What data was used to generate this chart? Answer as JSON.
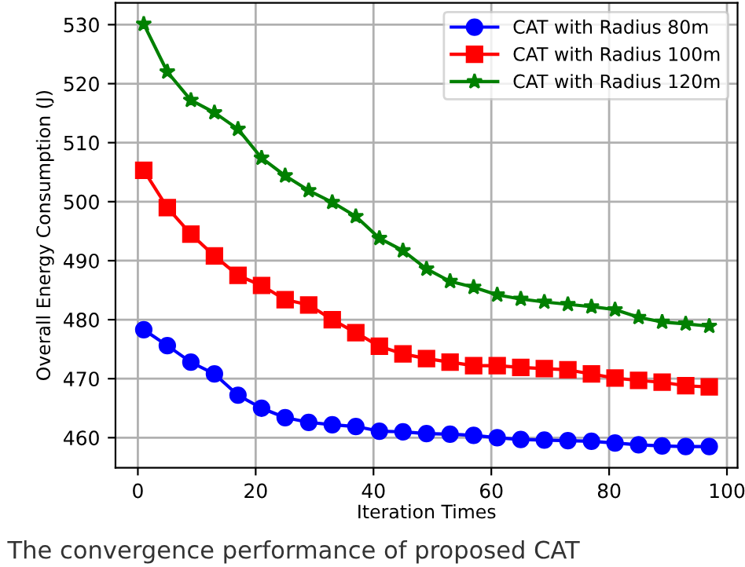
{
  "chart_data": {
    "type": "line",
    "xlabel": "Iteration Times",
    "ylabel": "Overall Energy Consumption (J)",
    "x": [
      1,
      5,
      9,
      13,
      17,
      21,
      25,
      29,
      33,
      37,
      41,
      45,
      49,
      53,
      57,
      61,
      65,
      69,
      73,
      77,
      81,
      85,
      89,
      93,
      97
    ],
    "series": [
      {
        "name": "CAT with Radius 80m",
        "color": "#0000ff",
        "marker": "circle",
        "values": [
          478.3,
          475.6,
          472.8,
          470.8,
          467.2,
          465.0,
          463.4,
          462.6,
          462.2,
          461.9,
          461.1,
          461.0,
          460.7,
          460.6,
          460.4,
          460.0,
          459.7,
          459.6,
          459.5,
          459.4,
          459.1,
          458.8,
          458.6,
          458.5,
          458.5
        ]
      },
      {
        "name": "CAT with Radius 100m",
        "color": "#ff0000",
        "marker": "square",
        "values": [
          505.3,
          499.0,
          494.5,
          490.8,
          487.5,
          485.8,
          483.4,
          482.5,
          480.0,
          477.8,
          475.5,
          474.2,
          473.4,
          472.8,
          472.2,
          472.2,
          471.9,
          471.7,
          471.5,
          470.8,
          470.1,
          469.7,
          469.4,
          468.8,
          468.6
        ]
      },
      {
        "name": "CAT with Radius 120m",
        "color": "#008000",
        "marker": "star",
        "values": [
          530.1,
          522.0,
          517.2,
          515.1,
          512.3,
          507.4,
          504.4,
          501.9,
          499.9,
          497.5,
          493.8,
          491.7,
          488.6,
          486.5,
          485.5,
          484.2,
          483.5,
          483.0,
          482.6,
          482.2,
          481.7,
          480.4,
          479.6,
          479.3,
          478.9
        ]
      }
    ],
    "xlim": [
      -3.8,
      101.8
    ],
    "xticks": [
      0,
      20,
      40,
      60,
      80,
      100
    ],
    "ylim": [
      454.9,
      533.7
    ],
    "yticks": [
      460,
      470,
      480,
      490,
      500,
      510,
      520,
      530
    ],
    "grid": true,
    "legend": "top right",
    "line_style": "solid",
    "annotations": [
      "The convergence performance of proposed CAT"
    ]
  }
}
